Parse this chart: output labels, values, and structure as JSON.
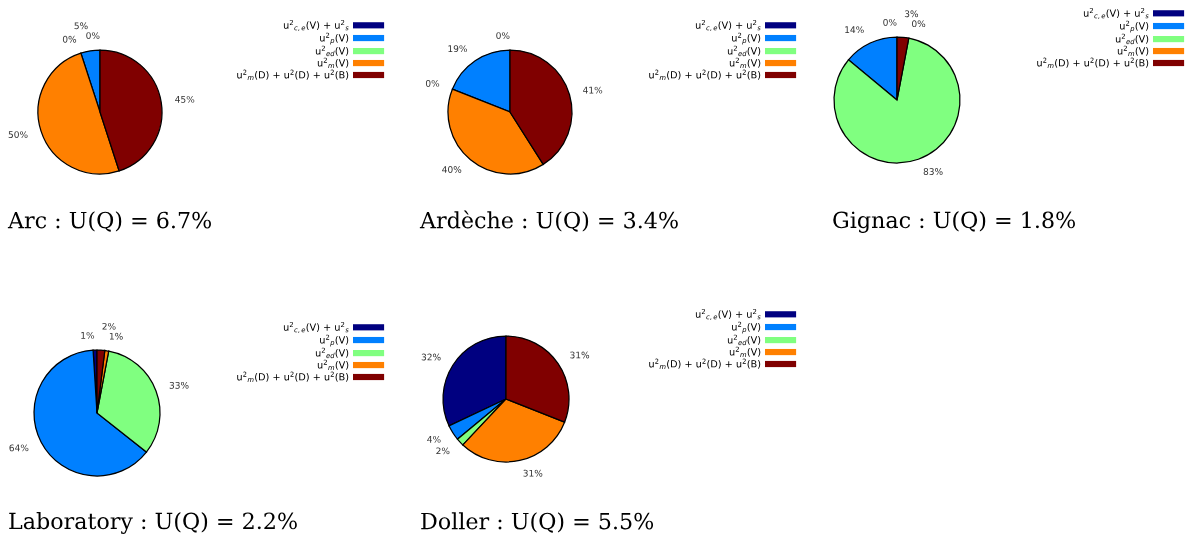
{
  "chart_data": [
    {
      "type": "pie",
      "title": "Arc : U(Q) = 6.7%",
      "categories": [
        "u$^{2}$$_{c,e}$(V) + u$^{2}$$_{s}$",
        "u$^{2}$$_{p}$(V)",
        "u$^{2}$$_{ed}$(V)",
        "u$^{2}$$_{m}$(V)",
        "u$^{2}$$_{m}$(D) + u$^{2}$(D) + u$^{2}$(B)"
      ],
      "values": [
        0,
        5,
        0,
        50,
        45
      ],
      "value_labels": [
        "0%",
        "5%",
        "0%",
        "50%",
        "45%"
      ],
      "colors": [
        "#000080",
        "#0080ff",
        "#80ff80",
        "#ff8000",
        "#800000"
      ],
      "legend": "right"
    },
    {
      "type": "pie",
      "title": "Ardèche : U(Q) = 3.4%",
      "categories": [
        "u$^{2}$$_{c,e}$(V) + u$^{2}$$_{s}$",
        "u$^{2}$$_{p}$(V)",
        "u$^{2}$$_{ed}$(V)",
        "u$^{2}$$_{m}$(V)",
        "u$^{2}$$_{m}$(D) + u$^{2}$(D) + u$^{2}$(B)"
      ],
      "values": [
        0,
        19,
        0,
        40,
        41
      ],
      "value_labels": [
        "0%",
        "19%",
        "0%",
        "40%",
        "41%"
      ],
      "colors": [
        "#000080",
        "#0080ff",
        "#80ff80",
        "#ff8000",
        "#800000"
      ],
      "legend": "right"
    },
    {
      "type": "pie",
      "title": "Gignac : U(Q) = 1.8%",
      "categories": [
        "u$^{2}$$_{c,e}$(V) + u$^{2}$$_{s}$",
        "u$^{2}$$_{p}$(V)",
        "u$^{2}$$_{ed}$(V)",
        "u$^{2}$$_{m}$(V)",
        "u$^{2}$$_{m}$(D) + u$^{2}$(D) + u$^{2}$(B)"
      ],
      "values": [
        0,
        14,
        83,
        0,
        3
      ],
      "value_labels": [
        "0%",
        "14%",
        "83%",
        "0%",
        "3%"
      ],
      "colors": [
        "#000080",
        "#0080ff",
        "#80ff80",
        "#ff8000",
        "#800000"
      ],
      "legend": "right"
    },
    {
      "type": "pie",
      "title": "Laboratory : U(Q) = 2.2%",
      "categories": [
        "u$^{2}$$_{c,e}$(V) + u$^{2}$$_{s}$",
        "u$^{2}$$_{p}$(V)",
        "u$^{2}$$_{ed}$(V)",
        "u$^{2}$$_{m}$(V)",
        "u$^{2}$$_{m}$(D) + u$^{2}$(D) + u$^{2}$(B)"
      ],
      "values": [
        1,
        64,
        33,
        1,
        2
      ],
      "value_labels": [
        "1%",
        "64%",
        "33%",
        "1%",
        "2%"
      ],
      "colors": [
        "#000080",
        "#0080ff",
        "#80ff80",
        "#ff8000",
        "#800000"
      ],
      "legend": "right"
    },
    {
      "type": "pie",
      "title": "Doller : U(Q) = 5.5%",
      "categories": [
        "u$^{2}$$_{c,e}$(V) + u$^{2}$$_{s}$",
        "u$^{2}$$_{p}$(V)",
        "u$^{2}$$_{ed}$(V)",
        "u$^{2}$$_{m}$(V)",
        "u$^{2}$$_{m}$(D) + u$^{2}$(D) + u$^{2}$(B)"
      ],
      "values": [
        32,
        4,
        2,
        31,
        31
      ],
      "value_labels": [
        "32%",
        "4%",
        "2%",
        "31%",
        "31%"
      ],
      "colors": [
        "#000080",
        "#0080ff",
        "#80ff80",
        "#ff8000",
        "#800000"
      ],
      "legend": "right"
    }
  ]
}
